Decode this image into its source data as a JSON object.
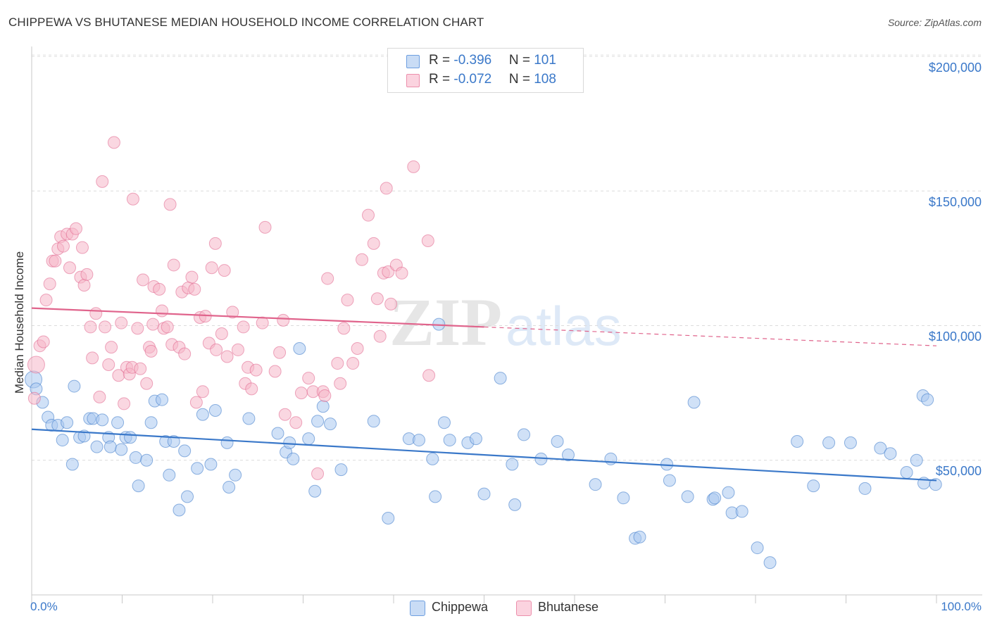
{
  "title": "CHIPPEWA VS BHUTANESE MEDIAN HOUSEHOLD INCOME CORRELATION CHART",
  "source": "Source: ZipAtlas.com",
  "watermark": {
    "zip": "ZIP",
    "atlas": "atlas"
  },
  "legend": {
    "rows": [
      {
        "r_label": "R = ",
        "r_value": "-0.396",
        "n_label": "N = ",
        "n_value": "101",
        "color": "#a9c8f0"
      },
      {
        "r_label": "R = ",
        "r_value": "-0.072",
        "n_label": "N = ",
        "n_value": "108",
        "color": "#f5b6c8"
      }
    ]
  },
  "bottom_legend": [
    {
      "label": "Chippewa",
      "color": "#a9c8f0"
    },
    {
      "label": "Bhutanese",
      "color": "#f5b6c8"
    }
  ],
  "chart_data": {
    "type": "scatter",
    "title": "CHIPPEWA VS BHUTANESE MEDIAN HOUSEHOLD INCOME CORRELATION CHART",
    "xlabel": "",
    "ylabel": "Median Household Income",
    "xlim": [
      0,
      100
    ],
    "ylim": [
      0,
      210000
    ],
    "x_tick_labels": [
      "0.0%",
      "100.0%"
    ],
    "y_ticks": [
      50000,
      100000,
      150000,
      200000
    ],
    "y_tick_labels": [
      "$50,000",
      "$100,000",
      "$150,000",
      "$200,000"
    ],
    "grid": true,
    "legend_position": "top-center",
    "series": [
      {
        "name": "Chippewa",
        "color": "#3a78c9",
        "fill": "#a9c8f0",
        "trend": {
          "x0": 0,
          "y0": 61500,
          "x1": 100,
          "y1": 42500,
          "dashed_from": null
        },
        "points": [
          [
            0.2,
            80000
          ],
          [
            0.5,
            76500
          ],
          [
            1.2,
            71500
          ],
          [
            1.8,
            66000
          ],
          [
            2.2,
            63000
          ],
          [
            2.9,
            63000
          ],
          [
            3.4,
            57500
          ],
          [
            3.9,
            64000
          ],
          [
            4.5,
            48500
          ],
          [
            4.7,
            77500
          ],
          [
            5.3,
            58500
          ],
          [
            5.8,
            59000
          ],
          [
            6.4,
            65500
          ],
          [
            6.8,
            65500
          ],
          [
            7.2,
            55000
          ],
          [
            7.8,
            65000
          ],
          [
            8.5,
            58500
          ],
          [
            8.7,
            55000
          ],
          [
            9.5,
            64000
          ],
          [
            9.9,
            54000
          ],
          [
            10.4,
            58500
          ],
          [
            10.9,
            58500
          ],
          [
            11.5,
            51000
          ],
          [
            11.8,
            40500
          ],
          [
            12.7,
            50000
          ],
          [
            13.2,
            64000
          ],
          [
            13.6,
            72000
          ],
          [
            14.4,
            72500
          ],
          [
            14.8,
            57000
          ],
          [
            15.2,
            44500
          ],
          [
            15.7,
            57000
          ],
          [
            16.3,
            31500
          ],
          [
            16.9,
            53500
          ],
          [
            17.2,
            36500
          ],
          [
            18.3,
            47000
          ],
          [
            18.9,
            67000
          ],
          [
            19.8,
            48500
          ],
          [
            20.3,
            68500
          ],
          [
            21.6,
            56500
          ],
          [
            21.8,
            40000
          ],
          [
            22.5,
            44500
          ],
          [
            24.0,
            65500
          ],
          [
            27.2,
            60000
          ],
          [
            28.1,
            53000
          ],
          [
            28.5,
            56500
          ],
          [
            28.9,
            50500
          ],
          [
            29.6,
            91500
          ],
          [
            30.6,
            58000
          ],
          [
            31.3,
            38500
          ],
          [
            31.6,
            64500
          ],
          [
            32.2,
            70000
          ],
          [
            33.0,
            63500
          ],
          [
            34.2,
            46500
          ],
          [
            37.8,
            64500
          ],
          [
            39.4,
            28500
          ],
          [
            41.7,
            58000
          ],
          [
            42.8,
            57500
          ],
          [
            45.0,
            100500
          ],
          [
            44.3,
            50500
          ],
          [
            44.6,
            36500
          ],
          [
            45.6,
            64000
          ],
          [
            46.2,
            57500
          ],
          [
            48.2,
            56500
          ],
          [
            49.1,
            58000
          ],
          [
            50.0,
            37500
          ],
          [
            51.8,
            80500
          ],
          [
            53.1,
            48500
          ],
          [
            53.4,
            33500
          ],
          [
            54.4,
            59500
          ],
          [
            56.3,
            50500
          ],
          [
            58.1,
            57000
          ],
          [
            59.3,
            52000
          ],
          [
            62.3,
            41000
          ],
          [
            64.0,
            50500
          ],
          [
            65.4,
            36000
          ],
          [
            66.7,
            21000
          ],
          [
            67.2,
            21500
          ],
          [
            70.2,
            48500
          ],
          [
            70.5,
            42500
          ],
          [
            72.5,
            36500
          ],
          [
            73.2,
            71500
          ],
          [
            75.3,
            35500
          ],
          [
            75.5,
            36000
          ],
          [
            77.0,
            38000
          ],
          [
            77.4,
            30500
          ],
          [
            78.5,
            31000
          ],
          [
            80.2,
            17500
          ],
          [
            81.6,
            12000
          ],
          [
            84.6,
            57000
          ],
          [
            86.4,
            40500
          ],
          [
            88.1,
            56500
          ],
          [
            90.5,
            56500
          ],
          [
            92.1,
            39500
          ],
          [
            93.8,
            54500
          ],
          [
            94.9,
            52500
          ],
          [
            96.7,
            45500
          ],
          [
            97.8,
            50000
          ],
          [
            98.5,
            74000
          ],
          [
            99.0,
            72500
          ],
          [
            98.6,
            41500
          ],
          [
            99.9,
            41000
          ]
        ]
      },
      {
        "name": "Bhutanese",
        "color": "#e0648c",
        "fill": "#f5b6c8",
        "trend": {
          "x0": 0,
          "y0": 106500,
          "x1": 100,
          "y1": 92500,
          "dashed_from": 50
        },
        "points": [
          [
            0.3,
            73000
          ],
          [
            0.5,
            85500
          ],
          [
            0.9,
            92500
          ],
          [
            1.3,
            94000
          ],
          [
            1.6,
            109500
          ],
          [
            2.0,
            115500
          ],
          [
            2.3,
            124000
          ],
          [
            2.6,
            124000
          ],
          [
            2.9,
            128500
          ],
          [
            3.2,
            133000
          ],
          [
            3.5,
            129500
          ],
          [
            3.9,
            134000
          ],
          [
            4.2,
            121500
          ],
          [
            4.5,
            134000
          ],
          [
            4.9,
            136000
          ],
          [
            5.4,
            118000
          ],
          [
            5.6,
            129000
          ],
          [
            5.8,
            115000
          ],
          [
            6.1,
            119000
          ],
          [
            6.5,
            99500
          ],
          [
            6.7,
            88000
          ],
          [
            7.1,
            104500
          ],
          [
            7.5,
            73500
          ],
          [
            7.8,
            153500
          ],
          [
            8.1,
            99500
          ],
          [
            8.5,
            85500
          ],
          [
            8.8,
            92000
          ],
          [
            9.1,
            168000
          ],
          [
            9.6,
            81500
          ],
          [
            9.9,
            101000
          ],
          [
            10.2,
            71000
          ],
          [
            10.5,
            84500
          ],
          [
            10.8,
            82000
          ],
          [
            11.1,
            84500
          ],
          [
            11.2,
            147000
          ],
          [
            11.7,
            99000
          ],
          [
            12.0,
            84000
          ],
          [
            12.3,
            117000
          ],
          [
            12.7,
            78500
          ],
          [
            13.0,
            92000
          ],
          [
            13.2,
            90500
          ],
          [
            13.5,
            114500
          ],
          [
            14.1,
            113500
          ],
          [
            13.4,
            100500
          ],
          [
            14.4,
            105500
          ],
          [
            14.6,
            99000
          ],
          [
            15.0,
            99500
          ],
          [
            15.3,
            145000
          ],
          [
            15.7,
            122500
          ],
          [
            15.5,
            93000
          ],
          [
            16.3,
            92000
          ],
          [
            16.6,
            112500
          ],
          [
            16.9,
            89500
          ],
          [
            17.3,
            114000
          ],
          [
            17.7,
            118000
          ],
          [
            18.0,
            113500
          ],
          [
            18.2,
            71500
          ],
          [
            18.9,
            75500
          ],
          [
            18.6,
            103000
          ],
          [
            19.2,
            103500
          ],
          [
            19.6,
            93500
          ],
          [
            19.9,
            121500
          ],
          [
            20.3,
            130500
          ],
          [
            20.4,
            91000
          ],
          [
            21.0,
            97000
          ],
          [
            21.3,
            120500
          ],
          [
            21.6,
            88500
          ],
          [
            22.2,
            105000
          ],
          [
            22.8,
            91000
          ],
          [
            23.4,
            99500
          ],
          [
            23.9,
            84500
          ],
          [
            23.6,
            78500
          ],
          [
            24.3,
            76500
          ],
          [
            24.8,
            83500
          ],
          [
            25.5,
            101000
          ],
          [
            25.8,
            136500
          ],
          [
            26.9,
            83000
          ],
          [
            27.4,
            90000
          ],
          [
            27.8,
            102000
          ],
          [
            28.0,
            67000
          ],
          [
            29.2,
            64000
          ],
          [
            29.8,
            75000
          ],
          [
            30.6,
            80500
          ],
          [
            31.1,
            75500
          ],
          [
            31.6,
            45000
          ],
          [
            32.2,
            75500
          ],
          [
            32.4,
            74000
          ],
          [
            32.7,
            117500
          ],
          [
            33.8,
            86000
          ],
          [
            34.1,
            78500
          ],
          [
            34.5,
            99000
          ],
          [
            34.9,
            109500
          ],
          [
            35.5,
            86000
          ],
          [
            36.0,
            91500
          ],
          [
            36.5,
            124500
          ],
          [
            37.2,
            141000
          ],
          [
            37.8,
            130500
          ],
          [
            38.2,
            110000
          ],
          [
            38.5,
            96000
          ],
          [
            38.9,
            119500
          ],
          [
            39.4,
            120000
          ],
          [
            39.7,
            108000
          ],
          [
            39.2,
            151000
          ],
          [
            40.3,
            122500
          ],
          [
            40.9,
            119500
          ],
          [
            42.2,
            159000
          ],
          [
            43.8,
            131500
          ],
          [
            43.9,
            81500
          ]
        ]
      }
    ]
  }
}
